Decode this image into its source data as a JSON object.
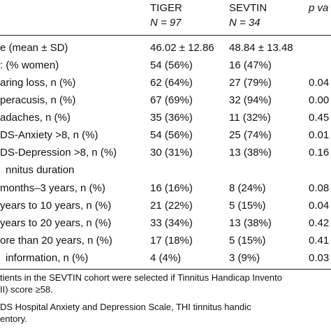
{
  "header": {
    "col1_name": "TIGER",
    "col1_n": "N = 97",
    "col2_name": "SEVTIN",
    "col2_n": "N = 34",
    "col3_name": "p va"
  },
  "rows": [
    {
      "label": "e (mean ± SD)",
      "c1": "46.02 ± 12.86",
      "c2": "48.84 ± 13.48",
      "c3": ""
    },
    {
      "label": ": (% women)",
      "c1": "54 (56%)",
      "c2": "16 (47%)",
      "c3": ""
    },
    {
      "label": "aring loss, n (%)",
      "c1": "62 (64%)",
      "c2": "27 (79%)",
      "c3": "0.04"
    },
    {
      "label": "peracusis, n (%)",
      "c1": "67 (69%)",
      "c2": "32 (94%)",
      "c3": "0.00"
    },
    {
      "label": "adaches, n (%)",
      "c1": "35 (36%)",
      "c2": "11 (32%)",
      "c3": "0.45"
    },
    {
      "label": "DS-Anxiety >8, n (%)",
      "c1": "54 (56%)",
      "c2": "25 (74%)",
      "c3": "0.01"
    },
    {
      "label": "DS-Depression >8, n (%)",
      "c1": "30 (31%)",
      "c2": "13 (38%)",
      "c3": "0.16"
    },
    {
      "label": "nnitus duration",
      "c1": "",
      "c2": "",
      "c3": ""
    },
    {
      "label": "months–3 years, n (%)",
      "c1": "16 (16%)",
      "c2": "8 (24%)",
      "c3": "0.08"
    },
    {
      "label": "years to 10 years, n (%)",
      "c1": "21 (22%)",
      "c2": "5 (15%)",
      "c3": "0.04"
    },
    {
      "label": "years to 20 years, n (%)",
      "c1": "33 (34%)",
      "c2": "13 (38%)",
      "c3": "0.42"
    },
    {
      "label": "ore than 20 years, n (%)",
      "c1": "17 (18%)",
      "c2": "5 (15%)",
      "c3": "0.41"
    },
    {
      "label": "information, n (%)",
      "c1": "4 (4%)",
      "c2": "3 (9%)",
      "c3": "0.03"
    }
  ],
  "notes": [
    "tients in the SEVTIN cohort were selected if Tinnitus Handicap Invento",
    "II) score ≥58.",
    "DS Hospital Anxiety and Depression Scale, THI tinnitus handic",
    "entory."
  ]
}
